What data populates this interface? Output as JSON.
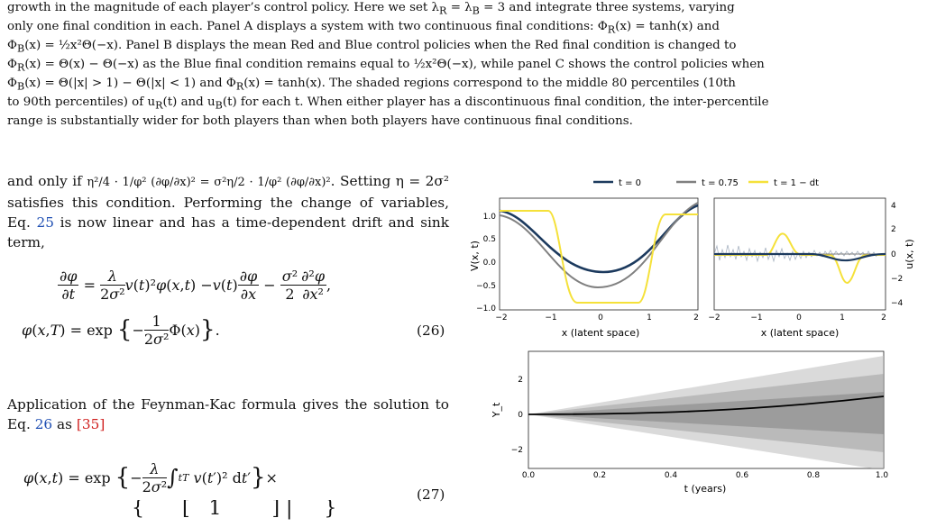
{
  "caption": {
    "line1": "growth in the magnitude of each player’s control policy. Here we set λ",
    "line1b": "= λ",
    "line1c": "= 3 and integrate three systems, varying",
    "line2": "only one final condition in each.  Panel A displays a system with two continuous final conditions:  Φ",
    "line2b": "(x) = tanh(x) and",
    "line3": "(x) = ½x²Θ(−x).  Panel B displays the mean Red and Blue control policies when the Red final condition is changed to",
    "line4": "(x) = Θ(x) − Θ(−x) as the Blue final condition remains equal to ½x²Θ(−x), while panel C shows the control policies when",
    "line5": "(x) = Θ(|x| > 1) − Θ(|x| < 1) and Φ",
    "line5b": "(x) = tanh(x).  The shaded regions correspond to the middle 80 percentiles (10th",
    "line6": "to 90th percentiles) of u",
    "line6b": "(t) and u",
    "line6c": "(t) for each t.  When either player has a discontinuous final condition, the inter-percentile",
    "line7": "range is substantially wider for both players than when both players have continuous final conditions."
  },
  "text": {
    "p1_prefix": "and only if",
    "p1_mid": ". Setting η = 2σ²",
    "p1_rest": "satisfies this condition.  Performing the change of variables, Eq.",
    "eq25": "25",
    "p1_rest2": "is now linear and has a time-dependent drift and sink term,",
    "eq26_num": "(26)",
    "p2": "Application of the Feynman-Kac formula gives the solution to Eq.",
    "eq26": "26",
    "p2_as": "as",
    "cite35": "[35]",
    "eq27_num": "(27)"
  },
  "figure": {
    "legend": [
      "t = 0",
      "t = 0.75",
      "t = 1 − dt"
    ],
    "legend_colors": [
      "#1c3a5e",
      "#808080",
      "#f5e13a"
    ],
    "panelA": {
      "ylabel": "V(x, t)",
      "xlabel": "x (latent space)",
      "yticks": [
        "1.0",
        "0.5",
        "0.0",
        "−0.5",
        "−1.0"
      ],
      "xticks": [
        "−2",
        "−1",
        "0",
        "1",
        "2"
      ]
    },
    "panelB": {
      "ylabel": "u(x, t)",
      "xlabel": "x (latent space)",
      "yticks": [
        "4",
        "2",
        "0",
        "−2",
        "−4"
      ],
      "xticks": [
        "−2",
        "−1",
        "0",
        "1",
        "2"
      ]
    },
    "panelC": {
      "ylabel": "Y_t",
      "xlabel": "t (years)",
      "yticks": [
        "2",
        "0",
        "−2"
      ],
      "xticks": [
        "0.0",
        "0.2",
        "0.4",
        "0.6",
        "0.8",
        "1.0"
      ]
    }
  }
}
